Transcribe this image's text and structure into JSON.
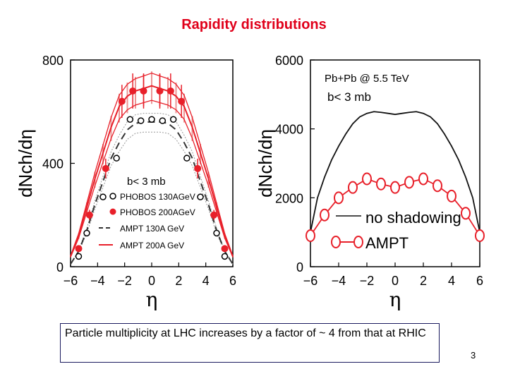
{
  "slide": {
    "title": "Rapidity distributions",
    "caption": "Particle multiplicity at LHC increases by a factor of ~ 4 from that at RHIC",
    "page_number": "3",
    "colors": {
      "title": "#e0001a",
      "red": "#e8202a",
      "black": "#111111",
      "band": "#e05050"
    }
  },
  "chart_data": [
    {
      "type": "scatter",
      "title": "",
      "xlabel": "η",
      "ylabel": "dNch/dη",
      "xlim": [
        -6,
        6
      ],
      "ylim": [
        0,
        800
      ],
      "xticks": [
        "−6",
        "−4",
        "−2",
        "0",
        "2",
        "4",
        "6"
      ],
      "yticks": [
        "0",
        "400",
        "800"
      ],
      "annotation": "b< 3 mb",
      "legend": [
        "PHOBOS 130AGeV",
        "PHOBOS 200AGeV",
        "AMPT 130A GeV",
        "AMPT 200A GeV"
      ],
      "series": [
        {
          "name": "PHOBOS 130AGeV",
          "style": "open-circle",
          "x": [
            -5.4,
            -4.8,
            -3.6,
            -2.6,
            -1.6,
            -0.8,
            0.0,
            0.8,
            1.6,
            2.6,
            3.6,
            4.8,
            5.4
          ],
          "y": [
            40,
            130,
            270,
            420,
            570,
            565,
            570,
            565,
            570,
            420,
            270,
            130,
            40
          ]
        },
        {
          "name": "PHOBOS 200AGeV",
          "style": "filled-circle",
          "x": [
            -5.4,
            -4.6,
            -3.4,
            -2.2,
            -1.4,
            -0.6,
            0.6,
            1.4,
            2.2,
            3.4,
            4.6,
            5.4
          ],
          "y": [
            70,
            200,
            380,
            640,
            680,
            680,
            680,
            680,
            640,
            380,
            200,
            70
          ]
        },
        {
          "name": "AMPT 130A GeV",
          "style": "dashed",
          "x": [
            -6.0,
            -5.4,
            -4.8,
            -4.2,
            -3.6,
            -3.0,
            -2.4,
            -1.8,
            -1.2,
            -0.6,
            0.0,
            0.6,
            1.2,
            1.8,
            2.4,
            3.0,
            3.6,
            4.2,
            4.8,
            5.4,
            6.0
          ],
          "y": [
            10,
            60,
            140,
            240,
            330,
            420,
            480,
            530,
            555,
            560,
            560,
            560,
            555,
            530,
            480,
            420,
            330,
            240,
            140,
            60,
            10
          ]
        },
        {
          "name": "AMPT 200A GeV",
          "style": "solid-red-band",
          "x": [
            -6.0,
            -5.4,
            -4.8,
            -4.2,
            -3.6,
            -3.0,
            -2.4,
            -1.8,
            -1.2,
            -0.6,
            0.0,
            0.6,
            1.2,
            1.8,
            2.4,
            3.0,
            3.6,
            4.2,
            4.8,
            5.4,
            6.0
          ],
          "y": [
            40,
            120,
            230,
            340,
            440,
            540,
            620,
            660,
            680,
            690,
            700,
            690,
            680,
            660,
            620,
            540,
            440,
            340,
            230,
            120,
            40
          ]
        }
      ]
    },
    {
      "type": "line",
      "title": "Pb+Pb @ 5.5 TeV",
      "subtitle": "b< 3 mb",
      "xlabel": "η",
      "ylabel": "dNch/dη",
      "xlim": [
        -6,
        6
      ],
      "ylim": [
        0,
        6000
      ],
      "xticks": [
        "−6",
        "−4",
        "−2",
        "0",
        "2",
        "4",
        "6"
      ],
      "yticks": [
        "0",
        "2000",
        "4000",
        "6000"
      ],
      "legend": [
        "no shadowing",
        "AMPT"
      ],
      "series": [
        {
          "name": "no shadowing",
          "style": "solid-black",
          "x": [
            -6.0,
            -5.5,
            -5.0,
            -4.5,
            -4.0,
            -3.5,
            -3.0,
            -2.5,
            -2.0,
            -1.5,
            -1.0,
            -0.5,
            0.0,
            0.5,
            1.0,
            1.5,
            2.0,
            2.5,
            3.0,
            3.5,
            4.0,
            4.5,
            5.0,
            5.5,
            6.0
          ],
          "y": [
            1000,
            2000,
            2600,
            3100,
            3500,
            3850,
            4150,
            4350,
            4450,
            4500,
            4480,
            4450,
            4420,
            4450,
            4480,
            4500,
            4450,
            4350,
            4150,
            3850,
            3500,
            3100,
            2600,
            2000,
            1000
          ]
        },
        {
          "name": "AMPT",
          "style": "open-circle-red-line",
          "x": [
            -6.0,
            -5.0,
            -4.0,
            -3.0,
            -2.0,
            -1.0,
            0.0,
            1.0,
            2.0,
            3.0,
            4.0,
            5.0,
            6.0
          ],
          "y": [
            900,
            1500,
            2000,
            2300,
            2550,
            2400,
            2300,
            2450,
            2550,
            2350,
            2050,
            1550,
            900
          ]
        }
      ]
    }
  ]
}
